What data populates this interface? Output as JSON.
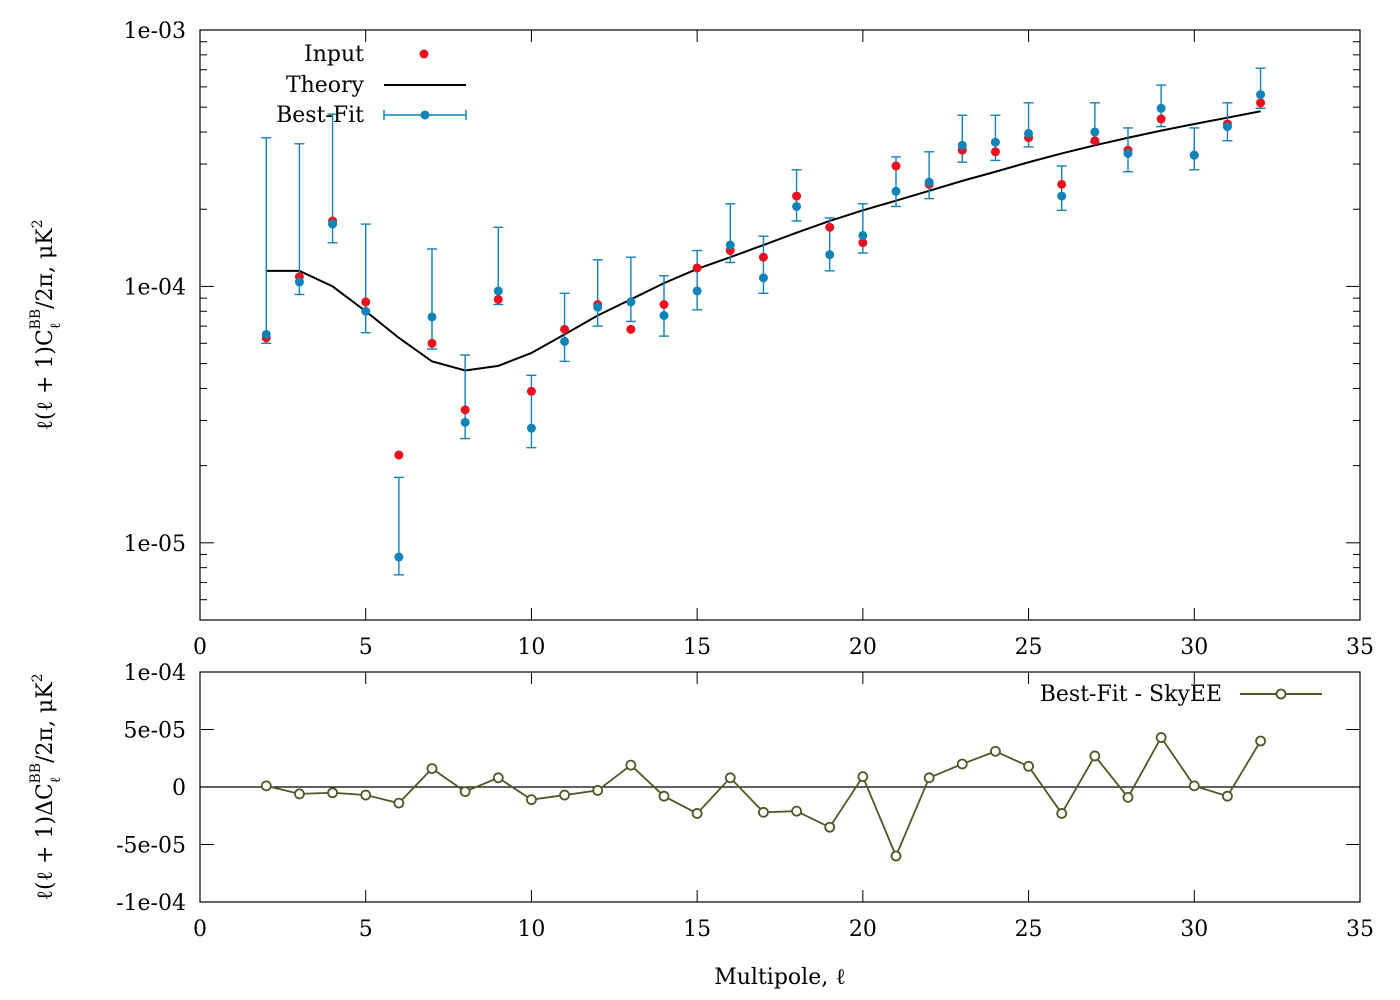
{
  "colors": {
    "input": "#e8111d",
    "bestfit": "#1283b7",
    "theory": "#000000",
    "diff": "#4b5a26"
  },
  "chart_data": [
    {
      "type": "scatter",
      "yscale": "log",
      "xlim": [
        0,
        35
      ],
      "ylim": [
        5e-06,
        0.001
      ],
      "xticks": [
        0,
        5,
        10,
        15,
        20,
        25,
        30,
        35
      ],
      "xtick_labels": [
        "0",
        "5",
        "10",
        "15",
        "20",
        "25",
        "30",
        "35"
      ],
      "yticks": [
        1e-05,
        0.0001,
        0.001
      ],
      "ytick_labels": [
        "1e-05",
        "1e-04",
        "1e-03"
      ],
      "ylabel": "ℓ(ℓ + 1)C_ℓ^BB/2π, μK²",
      "ylabel_parts": {
        "pre": "ℓ(ℓ + 1)C",
        "sub": "ℓ",
        "sup": "BB",
        "post": "/2π, μK",
        "sup2": "2"
      },
      "legend_position": "top-left",
      "x": [
        2,
        3,
        4,
        5,
        6,
        7,
        8,
        9,
        10,
        11,
        12,
        13,
        14,
        15,
        16,
        17,
        18,
        19,
        20,
        21,
        22,
        23,
        24,
        25,
        26,
        27,
        28,
        29,
        30,
        31,
        32
      ],
      "series": [
        {
          "name": "Input",
          "style": "points",
          "values": [
            6.3e-05,
            0.000109,
            0.00018,
            8.7e-05,
            2.2e-05,
            6e-05,
            3.3e-05,
            8.9e-05,
            3.9e-05,
            6.8e-05,
            8.5e-05,
            6.8e-05,
            8.5e-05,
            0.000118,
            0.000138,
            0.00013,
            0.000225,
            0.00017,
            0.000148,
            0.000295,
            0.00025,
            0.00034,
            0.000335,
            0.00038,
            0.00025,
            0.00037,
            0.00034,
            0.00045,
            0.000325,
            0.00043,
            0.00052
          ]
        },
        {
          "name": "Theory",
          "style": "line",
          "values": [
            0.000115,
            0.000115,
            0.0001,
            8e-05,
            6.3e-05,
            5.1e-05,
            4.7e-05,
            4.9e-05,
            5.5e-05,
            6.5e-05,
            7.7e-05,
            8.9e-05,
            0.000103,
            0.000117,
            0.00013,
            0.000145,
            0.000162,
            0.00018,
            0.000198,
            0.000216,
            0.000236,
            0.000258,
            0.00028,
            0.000305,
            0.00033,
            0.000355,
            0.00038,
            0.000405,
            0.00043,
            0.000455,
            0.000482
          ]
        },
        {
          "name": "Best-Fit",
          "style": "errorbars",
          "values": [
            6.5e-05,
            0.000104,
            0.000175,
            8e-05,
            8.8e-06,
            7.6e-05,
            2.95e-05,
            9.6e-05,
            2.8e-05,
            6.1e-05,
            8.3e-05,
            8.7e-05,
            7.7e-05,
            9.6e-05,
            0.000145,
            0.000108,
            0.000205,
            0.000133,
            0.000158,
            0.000235,
            0.000255,
            0.000355,
            0.000365,
            0.000395,
            0.000225,
            0.0004,
            0.00033,
            0.000495,
            0.000325,
            0.00042,
            0.00056
          ],
          "err_low": [
            6e-05,
            9.3e-05,
            0.000148,
            6.6e-05,
            7.5e-06,
            5.7e-05,
            2.55e-05,
            8.5e-05,
            2.35e-05,
            5.1e-05,
            7e-05,
            7.3e-05,
            6.4e-05,
            8.1e-05,
            0.000124,
            9.4e-05,
            0.00018,
            0.000115,
            0.000135,
            0.000205,
            0.00022,
            0.000305,
            0.00031,
            0.00035,
            0.000198,
            0.000365,
            0.00028,
            0.00042,
            0.000285,
            0.00037,
            0.000495
          ],
          "err_high": [
            0.00038,
            0.00036,
            0.00047,
            0.000175,
            1.8e-05,
            0.00014,
            5.4e-05,
            0.00017,
            4.5e-05,
            9.4e-05,
            0.000127,
            0.00013,
            0.00011,
            0.000138,
            0.00021,
            0.000157,
            0.000285,
            0.000185,
            0.00021,
            0.00032,
            0.000335,
            0.000465,
            0.000465,
            0.00052,
            0.000295,
            0.00052,
            0.000415,
            0.00061,
            0.000415,
            0.00052,
            0.00071
          ]
        }
      ]
    },
    {
      "type": "line",
      "xlim": [
        0,
        35
      ],
      "ylim": [
        -0.0001,
        0.0001
      ],
      "xticks": [
        0,
        5,
        10,
        15,
        20,
        25,
        30,
        35
      ],
      "xtick_labels": [
        "0",
        "5",
        "10",
        "15",
        "20",
        "25",
        "30",
        "35"
      ],
      "yticks": [
        -0.0001,
        -5e-05,
        0,
        5e-05,
        0.0001
      ],
      "ytick_labels": [
        "-1e-04",
        "-5e-05",
        "0",
        "5e-05",
        "1e-04"
      ],
      "xlabel": "Multipole, ℓ",
      "ylabel": "ℓ(ℓ + 1)ΔC_ℓ^BB/2π, μK²",
      "ylabel_parts": {
        "pre": "ℓ(ℓ + 1)ΔC",
        "sub": "ℓ",
        "sup": "BB",
        "post": "/2π, μK",
        "sup2": "2"
      },
      "legend_position": "top-right",
      "zero_line": true,
      "x": [
        2,
        3,
        4,
        5,
        6,
        7,
        8,
        9,
        10,
        11,
        12,
        13,
        14,
        15,
        16,
        17,
        18,
        19,
        20,
        21,
        22,
        23,
        24,
        25,
        26,
        27,
        28,
        29,
        30,
        31,
        32
      ],
      "series": [
        {
          "name": "Best-Fit - SkyEE",
          "style": "linespoints",
          "values": [
            1e-06,
            -6e-06,
            -5e-06,
            -7e-06,
            -1.4e-05,
            1.6e-05,
            -4e-06,
            8e-06,
            -1.1e-05,
            -7e-06,
            -3e-06,
            1.9e-05,
            -8e-06,
            -2.3e-05,
            8e-06,
            -2.2e-05,
            -2.1e-05,
            -3.5e-05,
            9e-06,
            -6e-05,
            8e-06,
            2e-05,
            3.1e-05,
            1.8e-05,
            -2.3e-05,
            2.7e-05,
            -9e-06,
            4.3e-05,
            1e-06,
            -8e-06,
            4e-05
          ]
        }
      ]
    }
  ]
}
